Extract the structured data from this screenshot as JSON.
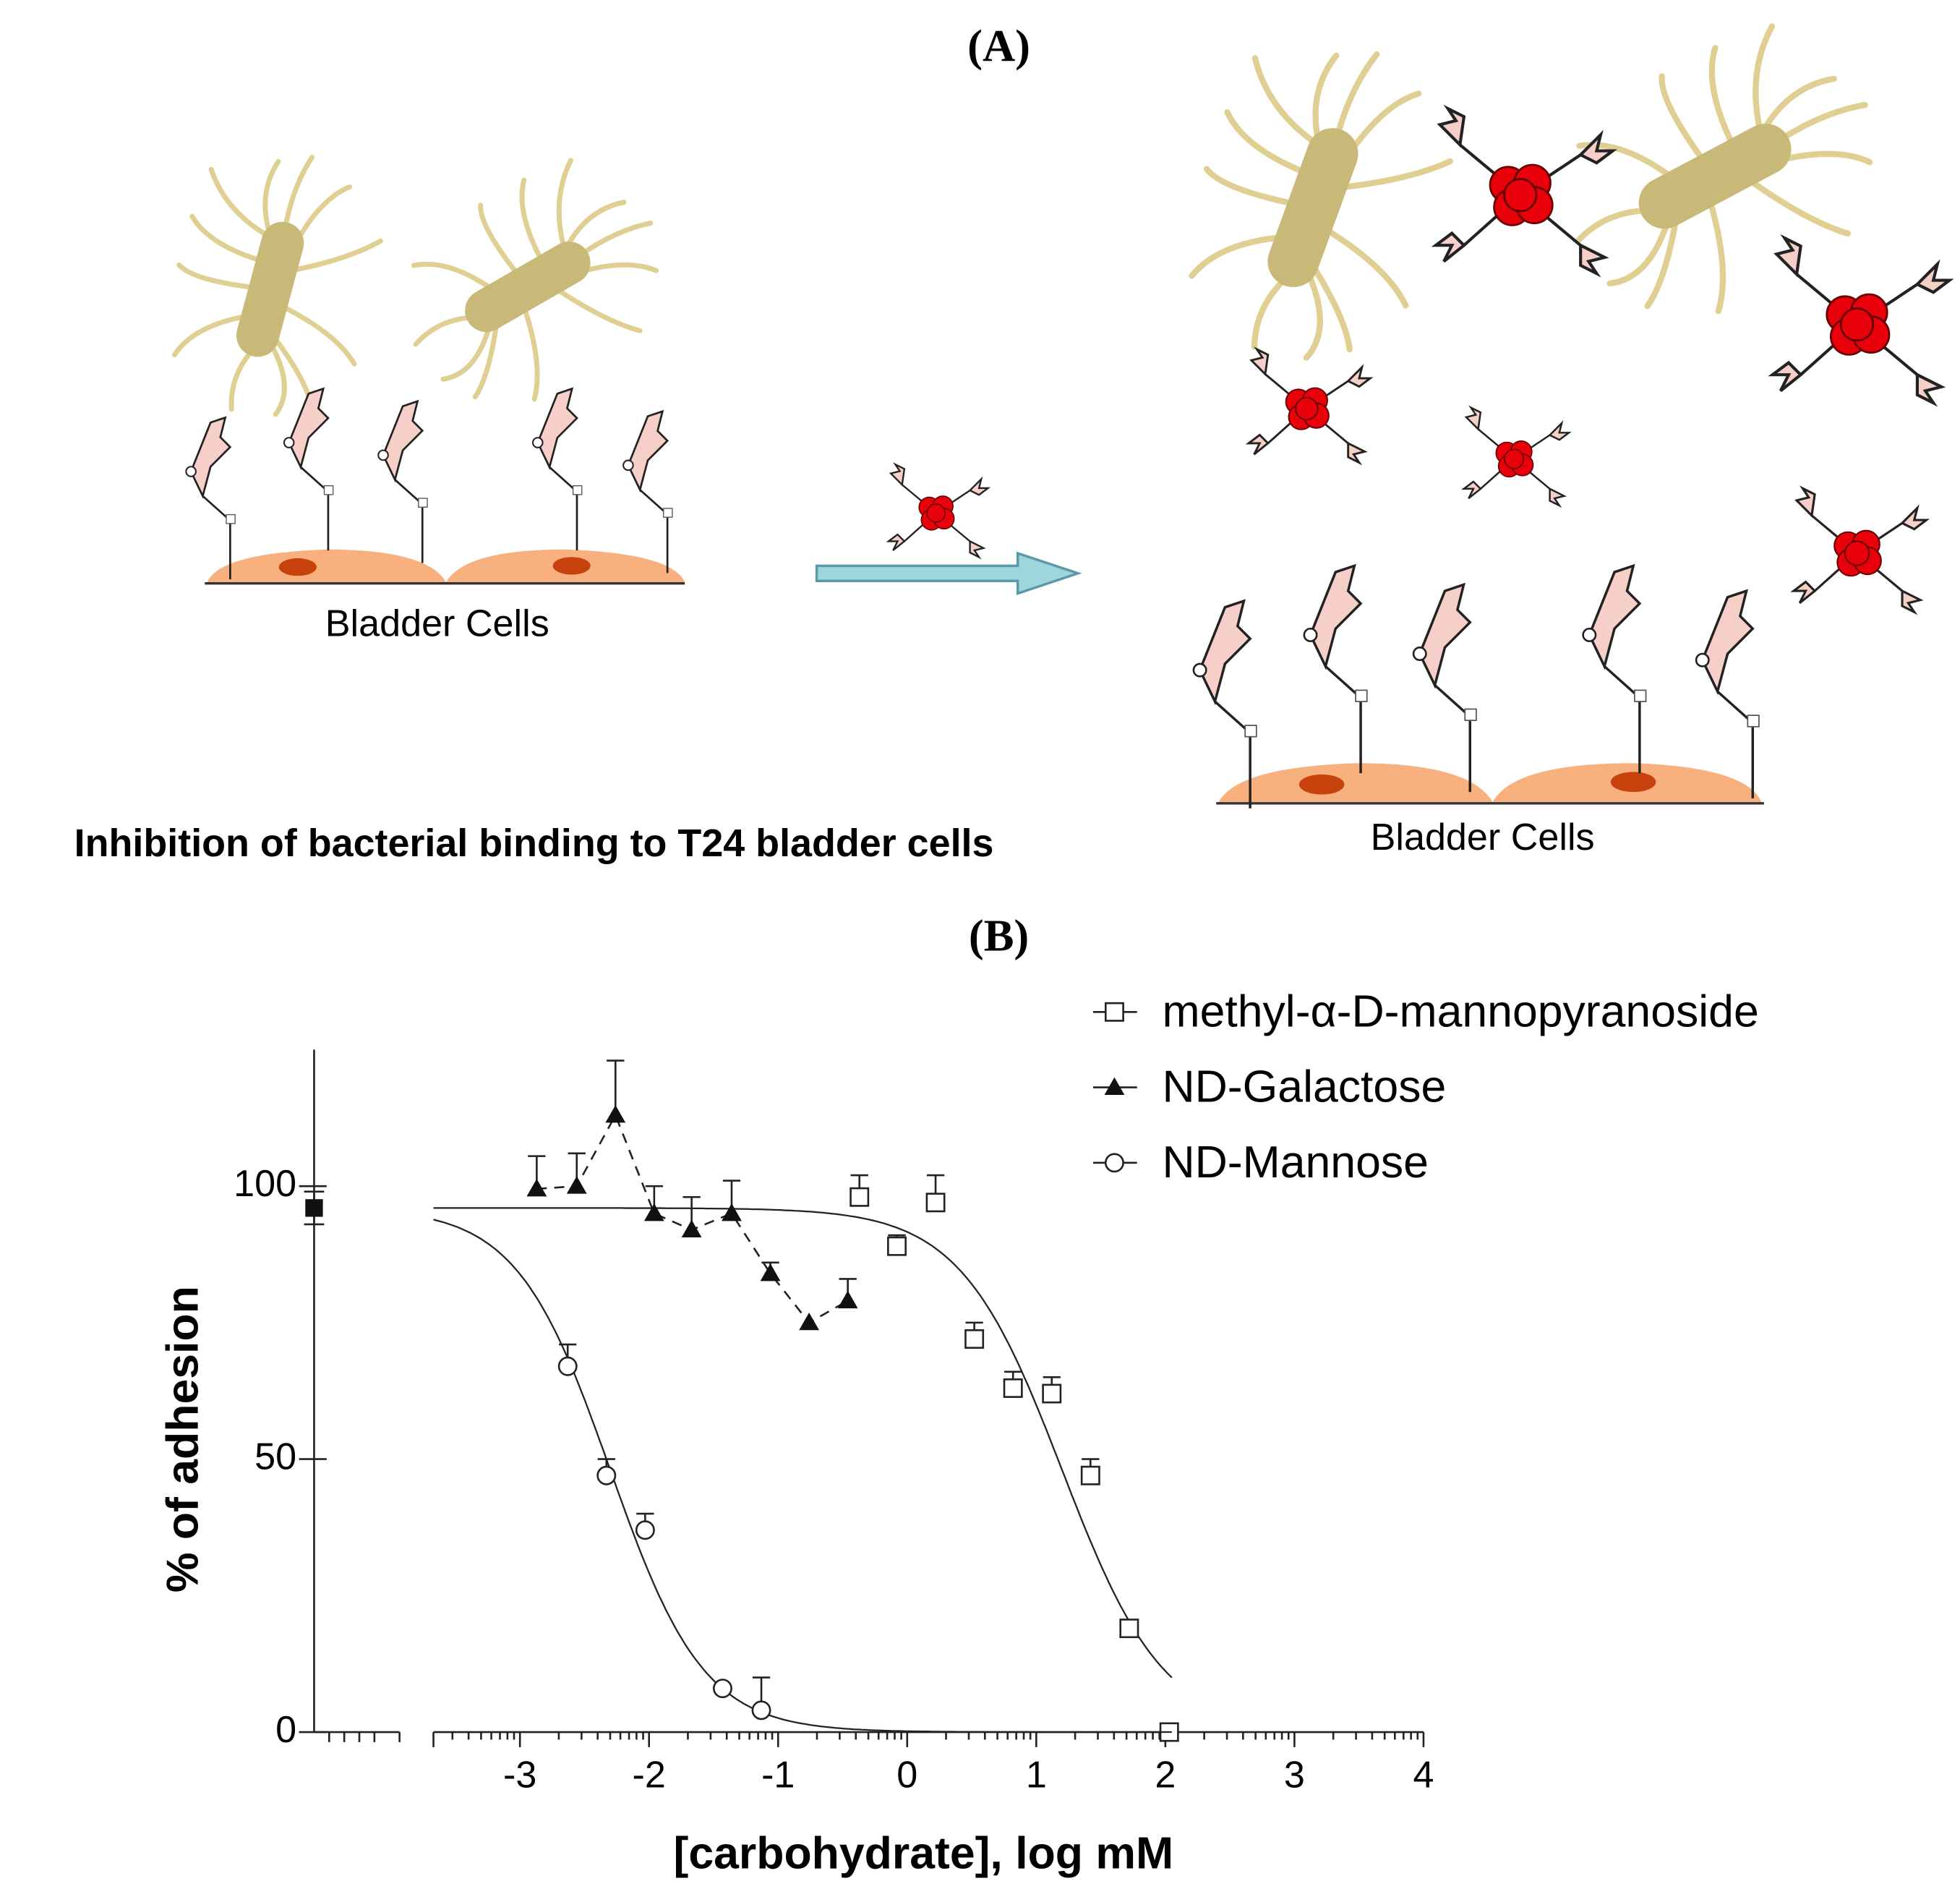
{
  "panel_a": {
    "label": "(A)",
    "cell_labels": [
      "Bladder Cells",
      "Bladder Cells"
    ],
    "caption": "Inhibition of bacterial binding to T24 bladder cells"
  },
  "panel_b": {
    "label": "(B)"
  },
  "chart_data": {
    "type": "scatter",
    "x_label": "[carbohydrate], log mM",
    "y_label": "% of adhesion",
    "xlim": [
      -3.67,
      4
    ],
    "ylim": [
      0,
      125
    ],
    "xticks": [
      -3,
      -2,
      -1,
      0,
      1,
      2,
      3,
      4
    ],
    "yticks": [
      0,
      50,
      100
    ],
    "control": {
      "value": 96,
      "error": 3
    },
    "series": [
      {
        "name": "methyl-α-D-mannopyranoside",
        "marker": "open-square",
        "x": [
          -0.37,
          -0.08,
          0.22,
          0.52,
          0.82,
          1.12,
          1.42,
          1.72,
          2.03
        ],
        "values": [
          98,
          89,
          97,
          72,
          63,
          62,
          47,
          19,
          0
        ],
        "errors": [
          4,
          2,
          5,
          3,
          3,
          3,
          3,
          0,
          0
        ],
        "fit": {
          "top": 96,
          "bottom": 0,
          "log_ic50": 1.2,
          "hill": 1.1,
          "xrange": [
            -3.67,
            2.05
          ]
        }
      },
      {
        "name": "ND-Galactose",
        "marker": "filled-triangle",
        "x": [
          -2.87,
          -2.56,
          -2.26,
          -1.96,
          -1.67,
          -1.36,
          -1.06,
          -0.76,
          -0.46
        ],
        "values": [
          99.5,
          100,
          113,
          95,
          92,
          95,
          84,
          75,
          79
        ],
        "errors": [
          6,
          6,
          10,
          5,
          6,
          6,
          2,
          0,
          4
        ]
      },
      {
        "name": "ND-Mannose",
        "marker": "open-circle",
        "x": [
          -2.63,
          -2.33,
          -2.03,
          -1.43,
          -1.13
        ],
        "values": [
          67,
          47,
          37,
          8,
          4
        ],
        "errors": [
          4,
          3,
          3,
          0,
          6
        ],
        "fit": {
          "top": 96,
          "bottom": 0,
          "log_ic50": -2.3,
          "hill": 1.2,
          "xrange": [
            -3.67,
            2.05
          ]
        }
      }
    ]
  }
}
